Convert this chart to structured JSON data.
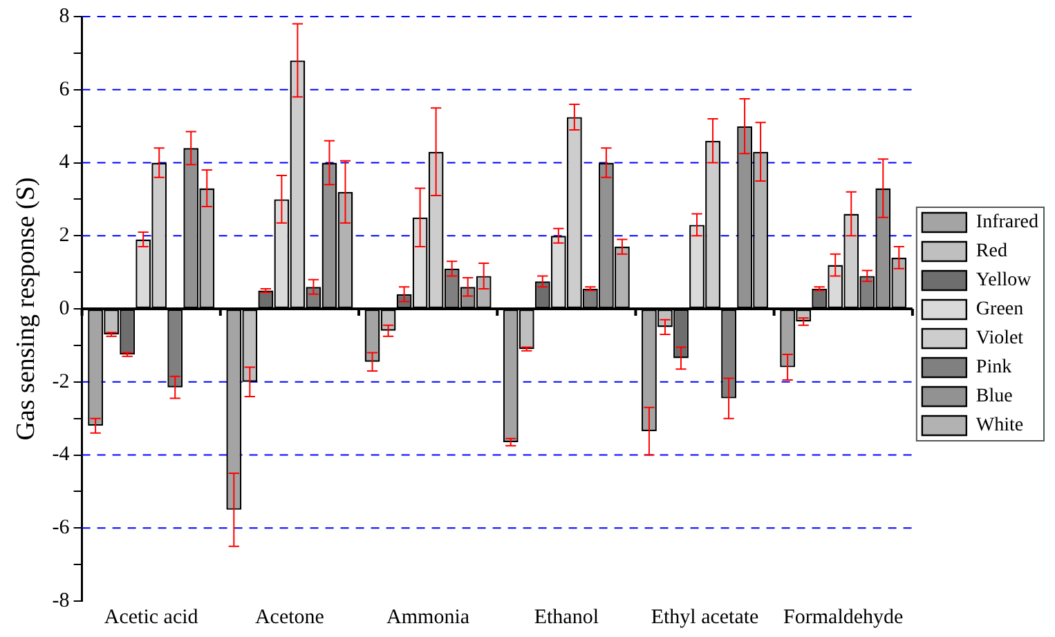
{
  "chart_data": {
    "type": "bar",
    "ylabel": "Gas sensing response (S)",
    "categories": [
      "Acetic acid",
      "Acetone",
      "Ammonia",
      "Ethanol",
      "Ethyl acetate",
      "Formaldehyde"
    ],
    "series": [
      {
        "name": "Infrared",
        "color": "#a4a4a4",
        "values": [
          -3.2,
          -5.5,
          -1.45,
          -3.65,
          -3.35,
          -1.6
        ],
        "errors": [
          0.2,
          1.0,
          0.25,
          0.1,
          0.65,
          0.35
        ]
      },
      {
        "name": "Red",
        "color": "#bfbfbf",
        "values": [
          -0.7,
          -2.0,
          -0.6,
          -1.1,
          -0.5,
          -0.35
        ],
        "errors": [
          0.05,
          0.4,
          0.15,
          0.05,
          0.2,
          0.1
        ]
      },
      {
        "name": "Yellow",
        "color": "#6e6e6e",
        "values": [
          -1.25,
          0.5,
          0.4,
          0.75,
          -1.35,
          0.55
        ],
        "errors": [
          0.05,
          0.05,
          0.2,
          0.15,
          0.3,
          0.05
        ]
      },
      {
        "name": "Green",
        "color": "#dadada",
        "values": [
          1.9,
          3.0,
          2.5,
          2.0,
          2.3,
          1.2
        ],
        "errors": [
          0.2,
          0.65,
          0.8,
          0.2,
          0.3,
          0.3
        ]
      },
      {
        "name": "Violet",
        "color": "#cdcdcd",
        "values": [
          4.0,
          6.8,
          4.3,
          5.25,
          4.6,
          2.6
        ],
        "errors": [
          0.4,
          1.0,
          1.2,
          0.35,
          0.6,
          0.6
        ]
      },
      {
        "name": "Pink",
        "color": "#808080",
        "values": [
          -2.15,
          0.6,
          1.1,
          0.55,
          -2.45,
          0.9
        ],
        "errors": [
          0.3,
          0.2,
          0.2,
          0.05,
          0.55,
          0.15
        ]
      },
      {
        "name": "Blue",
        "color": "#929292",
        "values": [
          4.4,
          4.0,
          0.6,
          4.0,
          5.0,
          3.3
        ],
        "errors": [
          0.45,
          0.6,
          0.25,
          0.4,
          0.75,
          0.8
        ]
      },
      {
        "name": "White",
        "color": "#b2b2b2",
        "values": [
          3.3,
          3.2,
          0.9,
          1.7,
          4.3,
          1.4
        ],
        "errors": [
          0.5,
          0.85,
          0.35,
          0.2,
          0.8,
          0.3
        ]
      }
    ],
    "ylim": [
      -8,
      8
    ],
    "yticks": [
      -8,
      {
        "value": -7,
        "label": null
      },
      -6,
      {
        "value": -5,
        "label": null
      },
      -4,
      {
        "value": -3,
        "label": null
      },
      -2,
      {
        "value": -1,
        "label": null
      },
      0,
      {
        "value": 1,
        "label": null
      },
      2,
      {
        "value": 3,
        "label": null
      },
      4,
      {
        "value": 5,
        "label": null
      },
      6,
      {
        "value": 7,
        "label": null
      },
      8
    ],
    "grid": "y",
    "legend": "right"
  }
}
